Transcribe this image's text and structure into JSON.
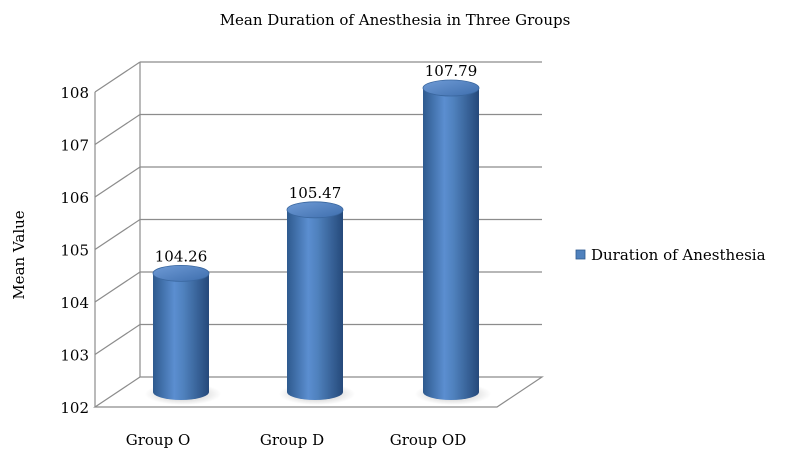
{
  "chart_data": {
    "type": "bar",
    "style": "3d-cylinder",
    "title": "Mean Duration of Anesthesia in Three Groups",
    "xlabel": "",
    "ylabel": "Mean Value",
    "categories": [
      "Group O",
      "Group D",
      "Group OD"
    ],
    "series": [
      {
        "name": "Duration of Anesthesia",
        "values": [
          104.26,
          105.47,
          107.79
        ],
        "color": "#4F81BD"
      }
    ],
    "data_labels": [
      "104.26",
      "105.47",
      "107.79"
    ],
    "ylim": [
      102,
      108
    ],
    "yticks": [
      102,
      103,
      104,
      105,
      106,
      107,
      108
    ],
    "grid": true,
    "legend_position": "right"
  }
}
